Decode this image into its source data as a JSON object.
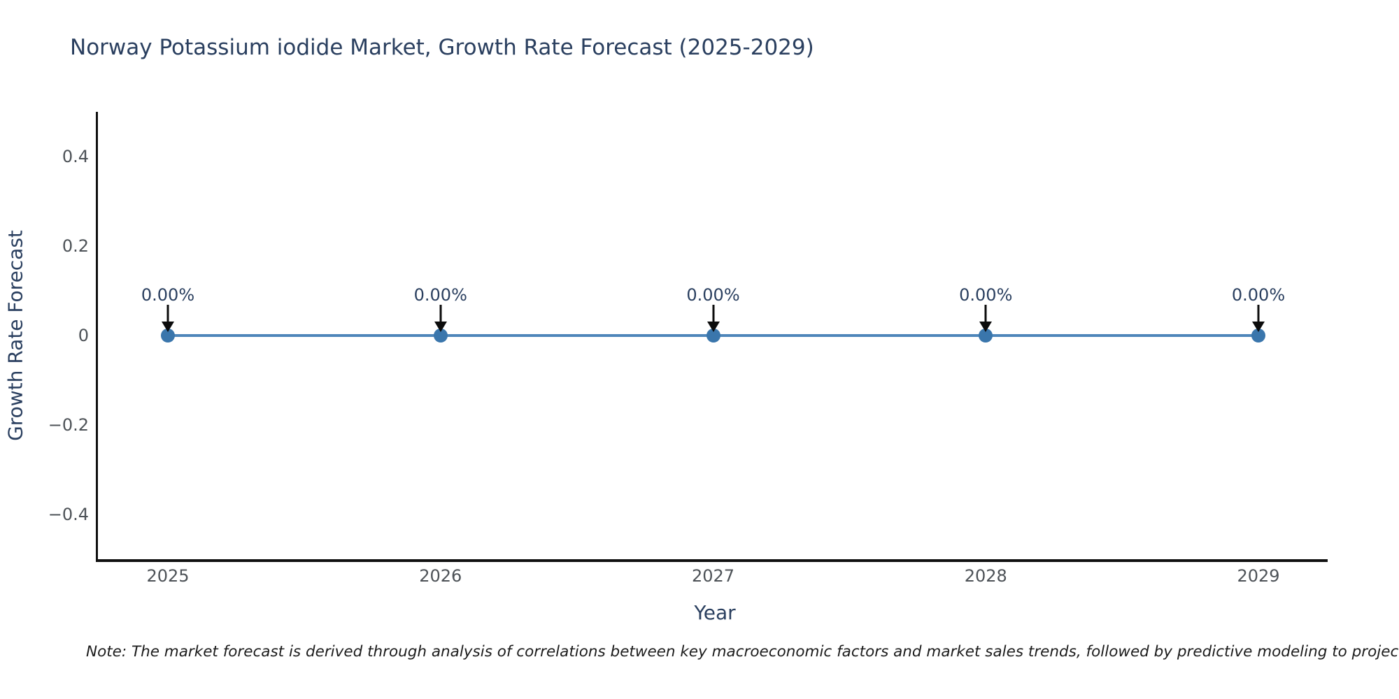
{
  "chart_data": {
    "type": "line",
    "title": "Norway Potassium iodide Market, Growth Rate Forecast (2025-2029)",
    "xlabel": "Year",
    "ylabel": "Growth Rate Forecast",
    "x": [
      2025,
      2026,
      2027,
      2028,
      2029
    ],
    "xtick_labels": [
      "2025",
      "2026",
      "2027",
      "2028",
      "2029"
    ],
    "series": [
      {
        "name": "Growth Rate Forecast",
        "values": [
          0,
          0,
          0,
          0,
          0
        ],
        "point_labels": [
          "0.00%",
          "0.00%",
          "0.00%",
          "0.00%",
          "0.00%"
        ]
      }
    ],
    "ylim": [
      -0.5,
      0.5
    ],
    "ytick_values": [
      0.4,
      0.2,
      0,
      -0.2,
      -0.4
    ],
    "ytick_labels": [
      "0.4",
      "0.2",
      "0",
      "−0.2",
      "−0.4"
    ],
    "grid": false,
    "legend": "none",
    "colors": {
      "line": "#4e86ba",
      "marker": "#3a76ac",
      "axis_line": "#111111",
      "title_text": "#2a3f5f",
      "tick_text": "#4d5257",
      "annotation_text": "#2a3f5f",
      "arrow": "#0c0c0c",
      "background": "#ffffff"
    },
    "annotation_style": "value label above each point with downward black arrow"
  },
  "note": "Note: The market forecast is derived through analysis of correlations between key macroeconomic factors and market sales trends, followed by predictive modeling to project future sales"
}
